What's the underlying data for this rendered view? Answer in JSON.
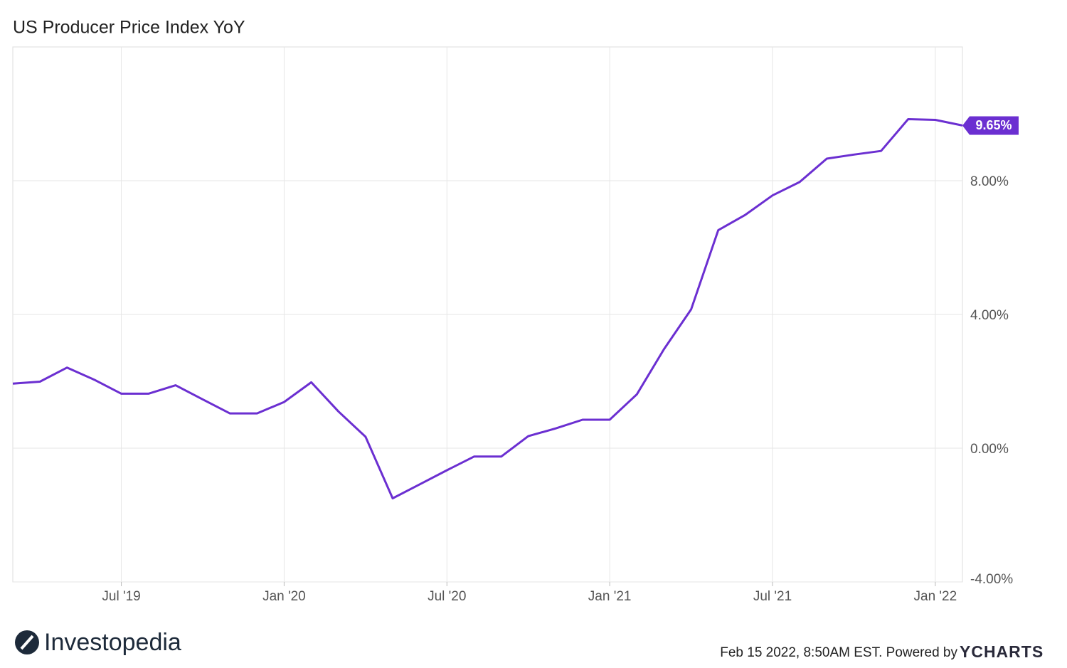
{
  "chart_data": {
    "type": "line",
    "title": "US Producer Price Index YoY",
    "x": [
      "2019-02",
      "2019-03",
      "2019-04",
      "2019-05",
      "2019-06",
      "2019-07",
      "2019-08",
      "2019-09",
      "2019-10",
      "2019-11",
      "2019-12",
      "2020-01",
      "2020-02",
      "2020-03",
      "2020-04",
      "2020-05",
      "2020-06",
      "2020-07",
      "2020-08",
      "2020-09",
      "2020-10",
      "2020-11",
      "2020-12",
      "2021-01",
      "2021-02",
      "2021-03",
      "2021-04",
      "2021-05",
      "2021-06",
      "2021-07",
      "2021-08",
      "2021-09",
      "2021-10",
      "2021-11",
      "2021-12",
      "2022-01"
    ],
    "series": [
      {
        "name": "US Producer Price Index YoY",
        "color": "#6b2fd1",
        "values": [
          1.93,
          1.99,
          2.41,
          2.05,
          1.63,
          1.63,
          1.88,
          1.46,
          1.04,
          1.04,
          1.38,
          1.97,
          1.1,
          0.34,
          -1.5,
          -1.08,
          -0.66,
          -0.25,
          -0.25,
          0.36,
          0.59,
          0.85,
          0.85,
          1.61,
          2.96,
          4.15,
          6.52,
          6.98,
          7.56,
          7.96,
          8.66,
          8.78,
          8.89,
          9.84,
          9.82,
          9.65
        ],
        "last_value_label": "9.65%"
      }
    ],
    "xlim": [
      "2019-03",
      "2022-02"
    ],
    "xticks": [
      {
        "value": "2019-07",
        "label": "Jul '19"
      },
      {
        "value": "2020-01",
        "label": "Jan '20"
      },
      {
        "value": "2020-07",
        "label": "Jul '20"
      },
      {
        "value": "2021-01",
        "label": "Jan '21"
      },
      {
        "value": "2021-07",
        "label": "Jul '21"
      },
      {
        "value": "2022-01",
        "label": "Jan '22"
      }
    ],
    "ylim": [
      -4,
      12
    ],
    "yticks": [
      {
        "value": -4,
        "label": "-4.00%"
      },
      {
        "value": 0,
        "label": "0.00%"
      },
      {
        "value": 4,
        "label": "4.00%"
      },
      {
        "value": 8,
        "label": "8.00%"
      }
    ],
    "grid": true
  },
  "branding": {
    "logo": "Investopedia",
    "footer": "Feb 15 2022, 8:50AM EST. Powered by",
    "footer_logo": "YCHARTS"
  }
}
